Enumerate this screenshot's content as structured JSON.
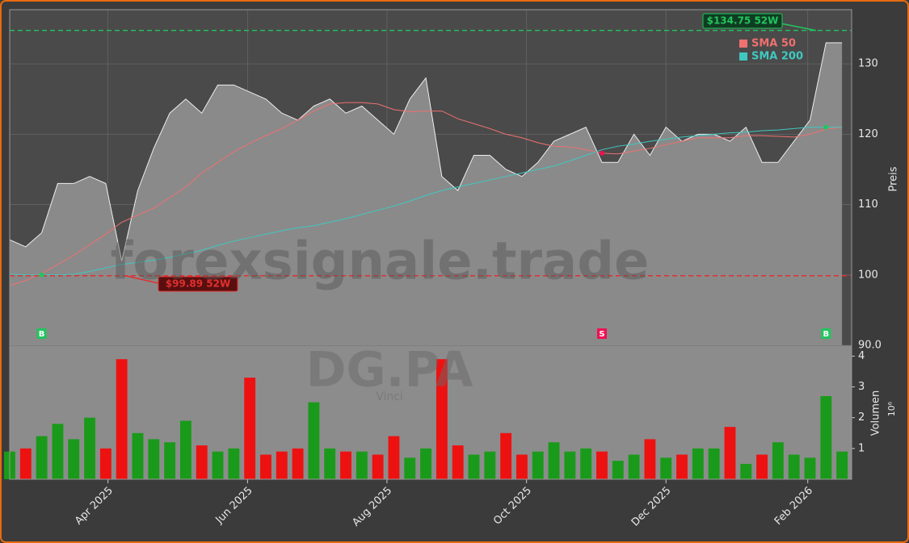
{
  "chart_data": {
    "type": "stock",
    "watermark": "forexsignale.trade",
    "symbol": "DG.PA",
    "company": "Vinci",
    "ylabel": "Preis",
    "volume_label": "Volumen",
    "volume_scale": "10⁶",
    "categories": [
      null,
      null,
      null,
      null,
      null,
      null,
      null,
      null,
      null,
      null,
      null,
      null,
      null,
      null,
      null,
      null,
      null,
      null,
      null,
      null,
      null,
      null,
      null,
      null,
      null,
      null,
      null,
      null,
      null,
      null,
      null,
      null,
      null,
      null,
      null,
      null,
      null,
      null,
      null,
      null,
      null,
      null,
      null,
      null,
      null,
      null,
      null,
      null,
      null,
      null,
      null,
      null,
      null
    ],
    "xlim": [
      0,
      52.6
    ],
    "xticks": [
      {
        "value": 6.14,
        "label": "Apr 2025"
      },
      {
        "value": 14.86,
        "label": "Jun 2025"
      },
      {
        "value": 23.57,
        "label": "Aug 2025"
      },
      {
        "value": 32.29,
        "label": "Oct 2025"
      },
      {
        "value": 41.0,
        "label": "Dec 2025"
      },
      {
        "value": 49.86,
        "label": "Feb 2026"
      }
    ],
    "ylim": [
      90,
      137.7
    ],
    "yticks": [
      {
        "value": 90,
        "label": "90.0"
      },
      100,
      110,
      120,
      130
    ],
    "grid": true,
    "price": {
      "color": "#8a8a8a",
      "values": [
        105,
        104,
        106,
        113,
        113,
        114,
        113,
        102,
        112,
        118,
        123,
        125,
        123,
        127,
        127,
        126,
        125,
        123,
        122,
        124,
        125,
        123,
        124,
        122,
        120,
        125,
        128,
        114,
        112,
        117,
        117,
        115,
        114,
        116,
        119,
        120,
        121,
        116,
        116,
        120,
        117,
        121,
        119,
        120,
        120,
        119,
        121,
        116,
        116,
        119,
        122,
        133,
        133
      ]
    },
    "series": [
      {
        "name": "SMA 50",
        "color": "#f07070",
        "values": [
          98.5,
          99.2,
          100.2,
          101.5,
          102.8,
          104.3,
          105.8,
          107.5,
          108.5,
          109.5,
          111,
          112.5,
          114.5,
          116,
          117.5,
          118.7,
          119.8,
          120.8,
          122,
          123.3,
          124.3,
          124.5,
          124.5,
          124.3,
          123.5,
          123.2,
          123.3,
          123.3,
          122.2,
          121.5,
          120.8,
          120,
          119.5,
          118.8,
          118.3,
          118.2,
          117.8,
          117.3,
          117.2,
          117.6,
          118,
          118.5,
          119,
          119.5,
          119.5,
          119.5,
          119.8,
          119.8,
          119.7,
          119.6,
          120,
          120.7,
          121
        ]
      },
      {
        "name": "SMA 200",
        "color": "#40c8c0",
        "values": [
          100.1,
          100,
          100,
          100,
          100.1,
          100.5,
          101,
          101.5,
          101.8,
          102.1,
          102.5,
          103,
          103.5,
          104.2,
          104.8,
          105.3,
          105.8,
          106.3,
          106.7,
          107,
          107.5,
          108,
          108.6,
          109.2,
          109.8,
          110.5,
          111.3,
          112,
          112.5,
          113,
          113.5,
          114,
          114.5,
          115,
          115.5,
          116.2,
          117,
          117.8,
          118.3,
          118.6,
          119,
          119.3,
          119.6,
          119.8,
          120,
          120.2,
          120.3,
          120.5,
          120.6,
          120.8,
          121,
          121,
          121
        ]
      }
    ],
    "legend": "upper-right",
    "annotations": [
      {
        "label": "$134.75 52W",
        "value": 134.75,
        "color": "#22c55e"
      },
      {
        "label": "$99.89 52W",
        "value": 99.89,
        "color": "#e03030"
      }
    ],
    "signals": [
      {
        "label": "B",
        "x": 2,
        "price": 100,
        "color": "#22c55e"
      },
      {
        "label": "S",
        "x": 37,
        "price": 117.3,
        "color": "#ee1155"
      },
      {
        "label": "B",
        "x": 51,
        "price": 121,
        "color": "#22c55e"
      }
    ],
    "volume": {
      "up_color": "#1a9a1a",
      "down_color": "#ee1111",
      "ylim": [
        0,
        4.35
      ],
      "yticks": [
        1,
        2,
        3,
        4
      ],
      "values": [
        0.9,
        1.0,
        1.4,
        1.8,
        1.3,
        2.0,
        1.0,
        3.9,
        1.5,
        1.3,
        1.2,
        1.9,
        1.1,
        0.9,
        1.0,
        3.3,
        0.8,
        0.9,
        1.0,
        2.5,
        1.0,
        0.9,
        0.9,
        0.8,
        1.4,
        0.7,
        1.0,
        3.9,
        1.1,
        0.8,
        0.9,
        1.5,
        0.8,
        0.9,
        1.2,
        0.9,
        1.0,
        0.9,
        0.6,
        0.8,
        1.3,
        0.7,
        0.8,
        1.0,
        1.0,
        1.7,
        0.5,
        0.8,
        1.2,
        0.8,
        0.7,
        2.7,
        0.9
      ]
    }
  }
}
